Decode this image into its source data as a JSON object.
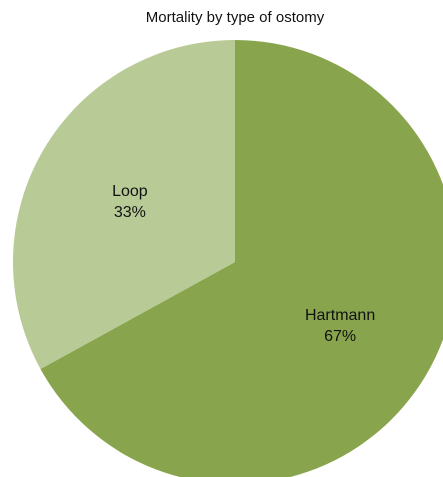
{
  "chart_data": {
    "type": "pie",
    "title": "Mortality by type of ostomy",
    "slices": [
      {
        "name": "Hartmann",
        "value": 67,
        "label": "67%",
        "color": "#88a54e"
      },
      {
        "name": "Loop",
        "value": 33,
        "label": "33%",
        "color": "#b8cb97"
      }
    ],
    "start_angle_deg": 0,
    "direction": "clockwise",
    "legend": "none"
  }
}
